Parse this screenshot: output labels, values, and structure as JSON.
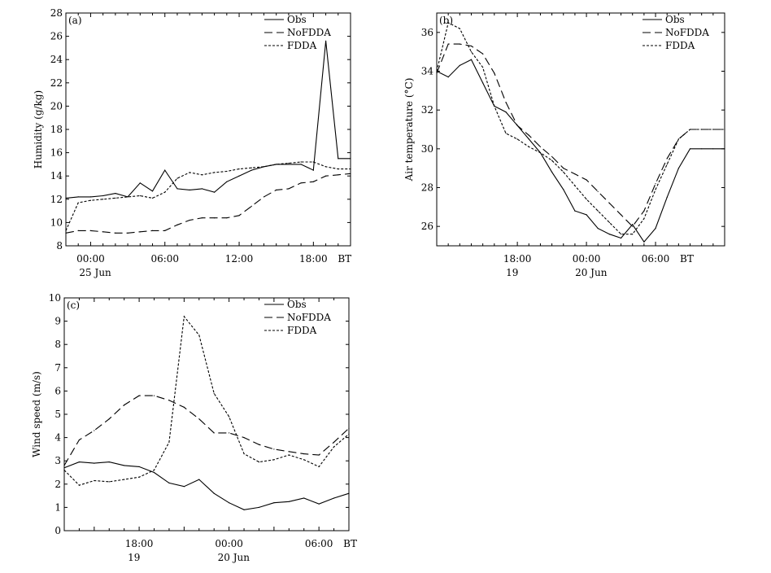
{
  "chart_data": [
    {
      "type": "line",
      "panel_label": "(a)",
      "ylabel": "Humidity (g/kg)",
      "ylim": [
        8,
        28
      ],
      "yticks": [
        8,
        10,
        12,
        14,
        16,
        18,
        20,
        22,
        24,
        26,
        28
      ],
      "xlim": [
        -2,
        21
      ],
      "xticks": [
        0,
        6,
        12,
        18
      ],
      "xticklabels": [
        "00:00",
        "06:00",
        "12:00",
        "18:00"
      ],
      "xunit": "BT",
      "xsublabels": [
        {
          "x": 0,
          "text": "25  Jun"
        }
      ],
      "legend": [
        "Obs",
        "NoFDDA",
        "FDDA"
      ],
      "series": [
        {
          "name": "Obs",
          "dash": "solid",
          "x": [
            -2,
            -1,
            0,
            1,
            2,
            3,
            4,
            5,
            6,
            7,
            8,
            9,
            10,
            11,
            12,
            13,
            14,
            15,
            16,
            17,
            18,
            19,
            20,
            21
          ],
          "y": [
            12.1,
            12.2,
            12.2,
            12.3,
            12.5,
            12.2,
            13.4,
            12.7,
            14.5,
            12.9,
            12.8,
            12.9,
            12.6,
            13.5,
            14.0,
            14.5,
            14.8,
            15.0,
            15.0,
            15.0,
            14.5,
            25.6,
            15.5,
            15.5
          ]
        },
        {
          "name": "NoFDDA",
          "dash": "long",
          "x": [
            -2,
            -1,
            0,
            1,
            2,
            3,
            4,
            5,
            6,
            7,
            8,
            9,
            10,
            11,
            12,
            13,
            14,
            15,
            16,
            17,
            18,
            19,
            20,
            21
          ],
          "y": [
            9.1,
            9.3,
            9.3,
            9.2,
            9.1,
            9.1,
            9.2,
            9.3,
            9.3,
            9.8,
            10.2,
            10.4,
            10.4,
            10.4,
            10.6,
            11.4,
            12.2,
            12.8,
            12.9,
            13.4,
            13.5,
            14.0,
            14.1,
            14.2
          ]
        },
        {
          "name": "FDDA",
          "dash": "short",
          "x": [
            -2,
            -1,
            0,
            1,
            2,
            3,
            4,
            5,
            6,
            7,
            8,
            9,
            10,
            11,
            12,
            13,
            14,
            15,
            16,
            17,
            18,
            19,
            20,
            21
          ],
          "y": [
            9.3,
            11.7,
            11.9,
            12.0,
            12.1,
            12.2,
            12.3,
            12.1,
            12.6,
            13.8,
            14.3,
            14.1,
            14.3,
            14.4,
            14.6,
            14.7,
            14.8,
            15.0,
            15.1,
            15.2,
            15.2,
            14.8,
            14.6,
            14.6
          ]
        }
      ]
    },
    {
      "type": "line",
      "panel_label": "(b)",
      "ylabel": "Air  temperature (°C)",
      "ylim": [
        25,
        37
      ],
      "yticks": [
        26,
        28,
        30,
        32,
        34,
        36
      ],
      "xlim": [
        11,
        36
      ],
      "xticks": [
        18,
        24,
        30
      ],
      "xticklabels": [
        "18:00",
        "00:00",
        "06:00"
      ],
      "xunit": "BT",
      "xsublabels": [
        {
          "x": 18,
          "text": "19"
        },
        {
          "x": 24,
          "text": "20  Jun"
        }
      ],
      "legend": [
        "Obs",
        "NoFDDA",
        "FDDA"
      ],
      "series": [
        {
          "name": "Obs",
          "dash": "solid",
          "x": [
            11,
            12,
            13,
            14,
            15,
            16,
            17,
            18,
            19,
            20,
            21,
            22,
            23,
            24,
            25,
            26,
            27,
            28,
            29,
            30,
            31,
            32,
            33,
            34,
            35,
            36
          ],
          "y": [
            34.0,
            33.7,
            34.3,
            34.6,
            33.4,
            32.2,
            31.9,
            31.2,
            30.5,
            29.8,
            28.8,
            27.9,
            26.8,
            26.6,
            25.9,
            25.6,
            25.4,
            26.1,
            25.2,
            25.9,
            27.5,
            29.0,
            30.0,
            30.0,
            30.0,
            30.0
          ]
        },
        {
          "name": "NoFDDA",
          "dash": "long",
          "x": [
            11,
            12,
            13,
            14,
            15,
            16,
            17,
            18,
            19,
            20,
            21,
            22,
            23,
            24,
            25,
            26,
            27,
            28,
            29,
            30,
            31,
            32,
            33,
            34,
            35,
            36
          ],
          "y": [
            33.9,
            35.4,
            35.4,
            35.3,
            34.9,
            33.9,
            32.4,
            31.2,
            30.7,
            30.1,
            29.6,
            29.0,
            28.7,
            28.4,
            27.8,
            27.2,
            26.6,
            26.0,
            26.8,
            28.2,
            29.5,
            30.5,
            31.0,
            31.0,
            31.0,
            31.0
          ]
        },
        {
          "name": "FDDA",
          "dash": "short",
          "x": [
            11,
            12,
            13,
            14,
            15,
            16,
            17,
            18,
            19,
            20,
            21,
            22,
            23,
            24,
            25,
            26,
            27,
            28,
            29,
            30,
            31,
            32,
            33,
            34,
            35,
            36
          ],
          "y": [
            34.0,
            36.5,
            36.2,
            35.0,
            34.2,
            32.2,
            30.8,
            30.5,
            30.1,
            29.8,
            29.4,
            28.8,
            28.1,
            27.4,
            26.8,
            26.2,
            25.6,
            25.6,
            26.4,
            27.9,
            29.2,
            30.5,
            31.0,
            31.0,
            31.0,
            31.0
          ]
        }
      ]
    },
    {
      "type": "line",
      "panel_label": "(c)",
      "ylabel": "Wind  speed  (m/s)",
      "ylim": [
        0,
        10
      ],
      "yticks": [
        0,
        1,
        2,
        3,
        4,
        5,
        6,
        7,
        8,
        9,
        10
      ],
      "xlim": [
        13,
        32
      ],
      "xticks": [
        18,
        24,
        30
      ],
      "xticklabels": [
        "18:00",
        "00:00",
        "06:00"
      ],
      "xunit": "BT",
      "xsublabels": [
        {
          "x": 18,
          "text": "19"
        },
        {
          "x": 24,
          "text": "20  Jun"
        }
      ],
      "legend": [
        "Obs",
        "NoFDDA",
        "FDDA"
      ],
      "series": [
        {
          "name": "Obs",
          "dash": "solid",
          "x": [
            13,
            14,
            15,
            16,
            17,
            18,
            19,
            20,
            21,
            22,
            23,
            24,
            25,
            26,
            27,
            28,
            29,
            30,
            31,
            32
          ],
          "y": [
            2.7,
            2.95,
            2.9,
            2.95,
            2.8,
            2.75,
            2.5,
            2.05,
            1.9,
            2.2,
            1.6,
            1.2,
            0.9,
            1.0,
            1.2,
            1.25,
            1.4,
            1.15,
            1.4,
            1.6
          ]
        },
        {
          "name": "NoFDDA",
          "dash": "long",
          "x": [
            13,
            14,
            15,
            16,
            17,
            18,
            19,
            20,
            21,
            22,
            23,
            24,
            25,
            26,
            27,
            28,
            29,
            30,
            31,
            32
          ],
          "y": [
            2.8,
            3.9,
            4.3,
            4.8,
            5.4,
            5.8,
            5.8,
            5.6,
            5.3,
            4.8,
            4.2,
            4.2,
            4.0,
            3.7,
            3.5,
            3.4,
            3.3,
            3.25,
            3.8,
            4.4
          ]
        },
        {
          "name": "FDDA",
          "dash": "short",
          "x": [
            13,
            14,
            15,
            16,
            17,
            18,
            19,
            20,
            21,
            22,
            23,
            24,
            25,
            26,
            27,
            28,
            29,
            30,
            31,
            32
          ],
          "y": [
            2.6,
            1.95,
            2.15,
            2.1,
            2.2,
            2.3,
            2.6,
            3.8,
            9.2,
            8.4,
            5.9,
            4.9,
            3.3,
            2.95,
            3.05,
            3.25,
            3.05,
            2.75,
            3.6,
            4.15
          ]
        }
      ]
    }
  ]
}
